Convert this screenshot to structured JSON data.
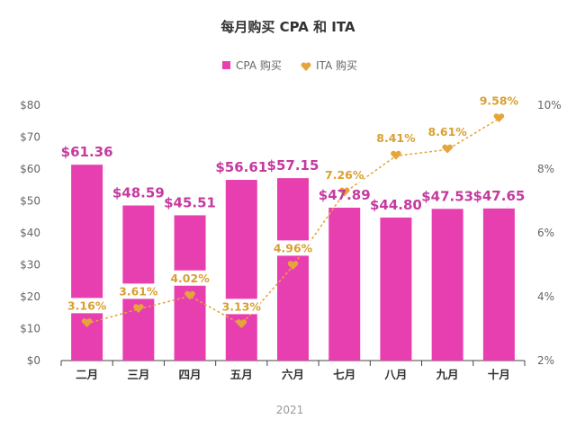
{
  "colors": {
    "bar": "#e83fb0",
    "bar_label": "#c53a9f",
    "ita": "#e6a53a",
    "ita_label": "#d8a032",
    "axis": "#444444",
    "grid": "#d9d9d9"
  },
  "chart_data": {
    "type": "bar",
    "title": "每月购买 CPA 和 ITA",
    "legend": {
      "position": "top",
      "items": [
        {
          "label": "CPA 购买",
          "icon": "square-icon"
        },
        {
          "label": "ITA 购买",
          "icon": "heart-icon"
        }
      ]
    },
    "categories": [
      "二月",
      "三月",
      "四月",
      "五月",
      "六月",
      "七月",
      "八月",
      "九月",
      "十月"
    ],
    "series": [
      {
        "name": "CPA 购买",
        "type": "bar",
        "axis": "left",
        "values": [
          61.36,
          48.59,
          45.51,
          56.61,
          57.15,
          47.89,
          44.8,
          47.53,
          47.65
        ],
        "labels": [
          "$61.36",
          "$48.59",
          "$45.51",
          "$56.61",
          "$57.15",
          "$47.89",
          "$44.80",
          "$47.53",
          "$47.65"
        ]
      },
      {
        "name": "ITA 购买",
        "type": "line",
        "axis": "right",
        "marker": "heart",
        "line_style": "dotted",
        "values": [
          3.16,
          3.61,
          4.02,
          3.13,
          4.96,
          7.26,
          8.41,
          8.61,
          9.58
        ],
        "labels": [
          "3.16%",
          "3.61%",
          "4.02%",
          "3.13%",
          "4.96%",
          "7.26%",
          "8.41%",
          "8.61%",
          "9.58%"
        ]
      }
    ],
    "y_left": {
      "ylim": [
        0,
        80
      ],
      "ticks": [
        "$0",
        "$10",
        "$20",
        "$30",
        "$40",
        "$50",
        "$60",
        "$70",
        "$80"
      ]
    },
    "y_right": {
      "ylim": [
        2,
        10
      ],
      "ticks": [
        "2%",
        "4%",
        "6%",
        "8%",
        "10%"
      ]
    },
    "xlabel": "2021",
    "grid": false
  }
}
